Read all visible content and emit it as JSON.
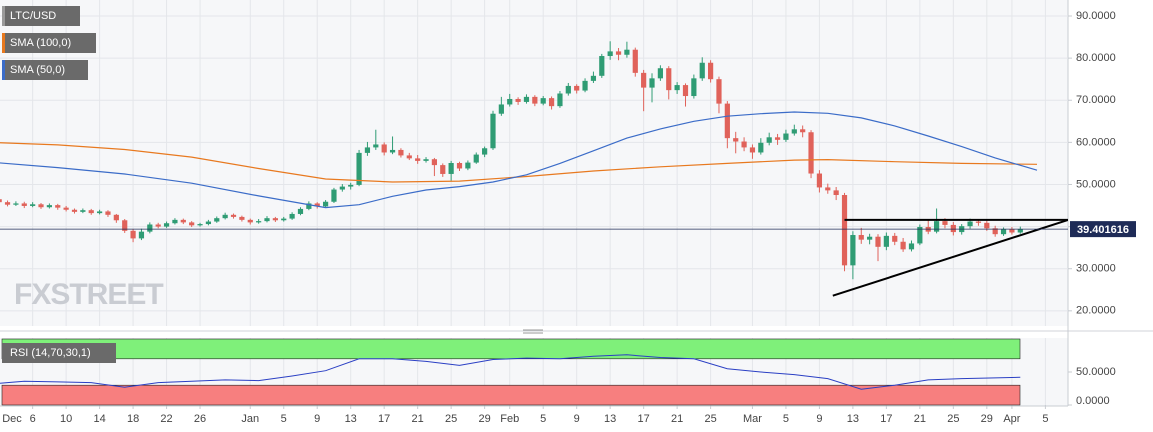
{
  "chart_data": {
    "type": "candlestick",
    "symbol": "LTC/USD",
    "logo": "FXSTREET",
    "colors": {
      "up": "#2f9c74",
      "down": "#e0625a"
    },
    "grid": true,
    "current_price": {
      "value": 39.401616,
      "label": "39.401616"
    },
    "xlim": [
      1.1,
      128.7
    ],
    "ylim": [
      16.4,
      93.8
    ],
    "xticks": [
      {
        "value": 0,
        "label": "Dec"
      },
      {
        "value": 5,
        "label": "6"
      },
      {
        "value": 9,
        "label": "10"
      },
      {
        "value": 13,
        "label": "14"
      },
      {
        "value": 17,
        "label": "18"
      },
      {
        "value": 21,
        "label": "22"
      },
      {
        "value": 25,
        "label": "26"
      },
      {
        "value": 31,
        "label": "Jan"
      },
      {
        "value": 35,
        "label": "5"
      },
      {
        "value": 39,
        "label": "9"
      },
      {
        "value": 43,
        "label": "13"
      },
      {
        "value": 47,
        "label": "17"
      },
      {
        "value": 51,
        "label": "21"
      },
      {
        "value": 55,
        "label": "25"
      },
      {
        "value": 59,
        "label": "29"
      },
      {
        "value": 62,
        "label": "Feb"
      },
      {
        "value": 66,
        "label": "5"
      },
      {
        "value": 70,
        "label": "9"
      },
      {
        "value": 74,
        "label": "13"
      },
      {
        "value": 78,
        "label": "17"
      },
      {
        "value": 82,
        "label": "21"
      },
      {
        "value": 86,
        "label": "25"
      },
      {
        "value": 91,
        "label": "Mar"
      },
      {
        "value": 95,
        "label": "5"
      },
      {
        "value": 99,
        "label": "9"
      },
      {
        "value": 103,
        "label": "13"
      },
      {
        "value": 107,
        "label": "17"
      },
      {
        "value": 111,
        "label": "21"
      },
      {
        "value": 115,
        "label": "25"
      },
      {
        "value": 119,
        "label": "29"
      },
      {
        "value": 122,
        "label": "Apr"
      },
      {
        "value": 126,
        "label": "5"
      }
    ],
    "yticks": [
      {
        "value": 20,
        "label": "20.0000"
      },
      {
        "value": 30,
        "label": "30.0000"
      },
      {
        "value": 40,
        "label": "40.0000"
      },
      {
        "value": 50,
        "label": "50.0000"
      },
      {
        "value": 60,
        "label": "60.0000"
      },
      {
        "value": 70,
        "label": "70.0000"
      },
      {
        "value": 80,
        "label": "80.0000"
      },
      {
        "value": 90,
        "label": "90.0000"
      }
    ],
    "ohlc": [
      [
        47.2,
        47.6,
        45.9,
        46.5
      ],
      [
        46.5,
        46.9,
        45.3,
        45.8
      ],
      [
        45.8,
        46.2,
        44.8,
        45.2
      ],
      [
        45.2,
        46.0,
        44.9,
        45.5
      ],
      [
        45.5,
        45.9,
        44.4,
        44.9
      ],
      [
        44.9,
        45.8,
        44.6,
        45.3
      ],
      [
        45.3,
        45.6,
        44.2,
        44.6
      ],
      [
        44.6,
        45.5,
        44.3,
        45.1
      ],
      [
        45.1,
        45.4,
        44.0,
        44.5
      ],
      [
        44.5,
        44.9,
        43.6,
        44.0
      ],
      [
        44.0,
        44.3,
        43.1,
        43.5
      ],
      [
        43.5,
        44.3,
        43.2,
        43.9
      ],
      [
        43.9,
        44.2,
        42.8,
        43.2
      ],
      [
        43.2,
        44.0,
        42.9,
        43.6
      ],
      [
        43.6,
        43.9,
        42.3,
        42.8
      ],
      [
        42.8,
        43.0,
        40.9,
        41.5
      ],
      [
        41.5,
        41.8,
        38.5,
        39.0
      ],
      [
        39.0,
        39.4,
        36.3,
        37.2
      ],
      [
        37.2,
        39.5,
        36.8,
        38.8
      ],
      [
        38.8,
        41.0,
        38.4,
        40.5
      ],
      [
        40.5,
        40.9,
        39.6,
        40.0
      ],
      [
        40.0,
        41.2,
        39.7,
        40.8
      ],
      [
        40.8,
        42.0,
        40.5,
        41.6
      ],
      [
        41.6,
        41.9,
        40.6,
        41.0
      ],
      [
        41.0,
        41.3,
        39.9,
        40.3
      ],
      [
        40.3,
        40.9,
        40.0,
        40.6
      ],
      [
        40.6,
        41.6,
        40.3,
        41.2
      ],
      [
        41.2,
        42.4,
        40.9,
        42.0
      ],
      [
        42.0,
        43.3,
        41.7,
        42.8
      ],
      [
        42.8,
        43.1,
        41.9,
        42.3
      ],
      [
        42.3,
        42.6,
        41.2,
        41.6
      ],
      [
        41.6,
        41.9,
        40.5,
        41.0
      ],
      [
        41.0,
        41.8,
        40.7,
        41.3
      ],
      [
        41.3,
        42.5,
        41.0,
        42.0
      ],
      [
        42.0,
        42.3,
        41.1,
        41.5
      ],
      [
        41.5,
        42.3,
        41.2,
        41.9
      ],
      [
        41.9,
        43.4,
        41.6,
        43.0
      ],
      [
        43.0,
        44.6,
        42.7,
        44.2
      ],
      [
        44.2,
        46.0,
        43.9,
        45.5
      ],
      [
        45.5,
        45.8,
        44.3,
        44.8
      ],
      [
        44.8,
        46.3,
        44.5,
        45.9
      ],
      [
        45.9,
        49.2,
        45.6,
        48.8
      ],
      [
        48.8,
        50.1,
        48.3,
        49.5
      ],
      [
        49.5,
        50.4,
        48.8,
        49.9
      ],
      [
        49.9,
        58.2,
        49.6,
        57.5
      ],
      [
        57.5,
        60.1,
        56.8,
        58.8
      ],
      [
        58.8,
        63.0,
        58.2,
        59.5
      ],
      [
        59.5,
        60.0,
        56.9,
        57.6
      ],
      [
        57.6,
        61.4,
        57.2,
        58.2
      ],
      [
        58.2,
        58.6,
        56.4,
        56.9
      ],
      [
        56.9,
        57.5,
        55.8,
        56.2
      ],
      [
        56.2,
        57.0,
        54.9,
        55.6
      ],
      [
        55.6,
        56.5,
        55.2,
        56.0
      ],
      [
        56.0,
        56.3,
        52.0,
        54.6
      ],
      [
        54.6,
        55.0,
        51.8,
        52.5
      ],
      [
        52.5,
        55.6,
        50.9,
        55.1
      ],
      [
        55.1,
        55.4,
        53.2,
        53.8
      ],
      [
        53.8,
        55.7,
        53.4,
        55.2
      ],
      [
        55.2,
        57.6,
        54.9,
        57.1
      ],
      [
        57.1,
        59.0,
        56.5,
        58.6
      ],
      [
        58.6,
        67.5,
        58.2,
        66.8
      ],
      [
        66.8,
        70.8,
        66.3,
        69.0
      ],
      [
        69.0,
        71.5,
        68.5,
        70.3
      ],
      [
        70.3,
        70.7,
        68.9,
        69.6
      ],
      [
        69.6,
        71.4,
        69.2,
        70.8
      ],
      [
        70.8,
        71.2,
        68.6,
        69.2
      ],
      [
        69.2,
        71.0,
        68.8,
        70.5
      ],
      [
        70.5,
        70.9,
        67.8,
        68.6
      ],
      [
        68.6,
        72.2,
        68.2,
        71.6
      ],
      [
        71.6,
        74.1,
        71.1,
        73.4
      ],
      [
        73.4,
        73.8,
        71.6,
        72.3
      ],
      [
        72.3,
        75.2,
        71.9,
        74.6
      ],
      [
        74.6,
        76.8,
        74.1,
        75.8
      ],
      [
        75.8,
        81.0,
        75.3,
        80.5
      ],
      [
        80.5,
        84.0,
        79.6,
        81.6
      ],
      [
        81.6,
        82.4,
        79.5,
        80.8
      ],
      [
        80.8,
        83.9,
        80.1,
        82.0
      ],
      [
        82.0,
        82.5,
        75.6,
        76.5
      ],
      [
        76.5,
        77.2,
        67.4,
        73.0
      ],
      [
        73.0,
        76.4,
        69.5,
        75.2
      ],
      [
        75.2,
        78.3,
        74.6,
        77.6
      ],
      [
        77.6,
        78.1,
        70.2,
        72.4
      ],
      [
        72.4,
        74.3,
        71.5,
        73.6
      ],
      [
        73.6,
        74.0,
        68.5,
        71.0
      ],
      [
        71.0,
        76.1,
        70.4,
        75.2
      ],
      [
        75.2,
        80.2,
        74.6,
        78.9
      ],
      [
        78.9,
        79.5,
        74.2,
        75.0
      ],
      [
        75.0,
        75.6,
        66.9,
        69.2
      ],
      [
        69.2,
        69.8,
        58.6,
        61.0
      ],
      [
        61.0,
        62.5,
        57.4,
        60.2
      ],
      [
        60.2,
        61.2,
        57.9,
        58.8
      ],
      [
        58.8,
        59.5,
        56.1,
        57.6
      ],
      [
        57.6,
        61.0,
        57.1,
        59.9
      ],
      [
        59.9,
        62.3,
        59.3,
        61.2
      ],
      [
        61.2,
        62.0,
        59.4,
        60.6
      ],
      [
        60.6,
        63.0,
        60.1,
        62.1
      ],
      [
        62.1,
        64.2,
        61.6,
        63.1
      ],
      [
        63.1,
        64.0,
        61.2,
        62.4
      ],
      [
        62.4,
        62.9,
        51.5,
        52.6
      ],
      [
        52.6,
        53.4,
        48.1,
        49.3
      ],
      [
        49.3,
        50.2,
        47.8,
        48.6
      ],
      [
        48.6,
        49.4,
        46.3,
        47.5
      ],
      [
        47.5,
        48.0,
        29.4,
        30.8
      ],
      [
        30.8,
        38.9,
        27.5,
        38.0
      ],
      [
        38.0,
        39.7,
        35.9,
        36.9
      ],
      [
        36.9,
        38.3,
        35.8,
        37.6
      ],
      [
        37.6,
        38.2,
        31.8,
        35.2
      ],
      [
        35.2,
        38.6,
        34.4,
        37.8
      ],
      [
        37.8,
        38.5,
        35.6,
        36.4
      ],
      [
        36.4,
        37.3,
        34.0,
        34.6
      ],
      [
        34.6,
        36.7,
        34.1,
        36.0
      ],
      [
        36.0,
        40.5,
        35.6,
        39.9
      ],
      [
        39.9,
        41.5,
        38.2,
        38.8
      ],
      [
        38.8,
        44.3,
        38.4,
        41.3
      ],
      [
        41.3,
        42.0,
        39.6,
        40.4
      ],
      [
        40.4,
        41.1,
        37.9,
        38.7
      ],
      [
        38.7,
        40.6,
        38.1,
        40.1
      ],
      [
        40.1,
        41.9,
        39.5,
        41.2
      ],
      [
        41.2,
        41.7,
        40.2,
        40.9
      ],
      [
        40.9,
        41.4,
        39.0,
        39.6
      ],
      [
        39.6,
        40.2,
        37.6,
        38.2
      ],
      [
        38.2,
        39.8,
        37.8,
        39.3
      ],
      [
        39.3,
        39.9,
        38.1,
        38.6
      ],
      [
        38.6,
        40.0,
        38.3,
        39.4
      ]
    ],
    "series": [
      {
        "name": "SMA (100,0)",
        "color": "#e8791f",
        "x": [
          0,
          8,
          16,
          24,
          32,
          40,
          48,
          56,
          64,
          72,
          80,
          88,
          96,
          100,
          108,
          116,
          125
        ],
        "values": [
          60.0,
          59.4,
          58.3,
          56.5,
          53.8,
          51.3,
          50.6,
          50.8,
          51.9,
          53.2,
          54.2,
          55.0,
          55.8,
          55.9,
          55.4,
          55.0,
          54.8
        ]
      },
      {
        "name": "SMA (50,0)",
        "color": "#3b6cc8",
        "x": [
          0,
          8,
          16,
          24,
          32,
          40,
          44,
          48,
          52,
          56,
          60,
          64,
          68,
          72,
          76,
          80,
          84,
          88,
          92,
          96,
          100,
          104,
          108,
          112,
          116,
          120,
          125
        ],
        "values": [
          55.3,
          54.0,
          52.5,
          50.3,
          47.3,
          44.5,
          45.2,
          47.2,
          48.7,
          49.5,
          50.6,
          52.3,
          55.0,
          58.0,
          61.0,
          63.2,
          65.0,
          66.2,
          66.8,
          67.2,
          66.9,
          65.8,
          63.9,
          61.5,
          59.0,
          56.3,
          53.4
        ]
      }
    ],
    "trendlines": [
      {
        "x": [
          100.6,
          128.7
        ],
        "values": [
          23.6,
          41.6
        ]
      },
      {
        "x": [
          102,
          128.7
        ],
        "values": [
          41.6,
          41.6
        ]
      }
    ],
    "rsi": {
      "name": "RSI (14,70,30,1)",
      "color": "#2a3fc4",
      "upper": 70,
      "lower": 30,
      "upper_color": "#7ff07a",
      "lower_color": "#f77f7f",
      "ylim": [
        0,
        100
      ],
      "yticks": [
        {
          "value": 0,
          "label": "0.0000"
        },
        {
          "value": 50,
          "label": "50.0000"
        }
      ],
      "x": [
        0,
        4,
        8,
        12,
        16,
        20,
        24,
        28,
        32,
        36,
        40,
        44,
        48,
        52,
        56,
        60,
        64,
        68,
        72,
        76,
        80,
        84,
        88,
        92,
        96,
        100,
        104,
        108,
        112,
        116,
        120,
        123
      ],
      "values": [
        33,
        36,
        35,
        34,
        27,
        34,
        36,
        38,
        37,
        44,
        52,
        70,
        70,
        66,
        60,
        69,
        71,
        70,
        74,
        76,
        72,
        70,
        55,
        50,
        46,
        40,
        24,
        30,
        38,
        40,
        41,
        42
      ]
    }
  }
}
